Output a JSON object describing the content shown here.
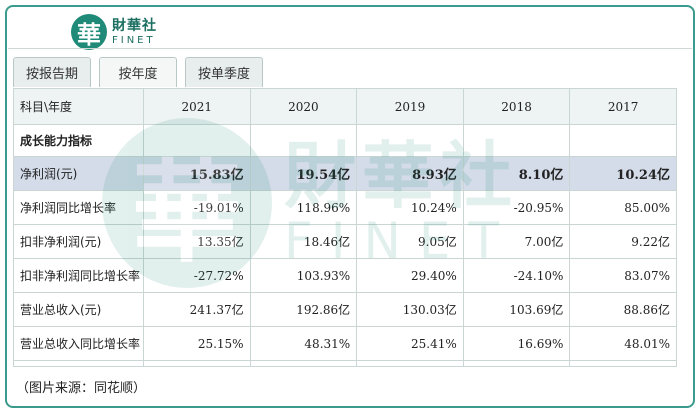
{
  "logo": {
    "mark": "華",
    "name_cn": "財華社",
    "name_en": "FINET"
  },
  "tabs": [
    {
      "label": "按报告期",
      "active": false
    },
    {
      "label": "按年度",
      "active": true
    },
    {
      "label": "按单季度",
      "active": false
    }
  ],
  "table": {
    "header_label": "科目\\年度",
    "years": [
      "2021",
      "2020",
      "2019",
      "2018",
      "2017"
    ],
    "section_title": "成长能力指标",
    "rows": [
      {
        "label": "净利润(元)",
        "values": [
          "15.83亿",
          "19.54亿",
          "8.93亿",
          "8.10亿",
          "10.24亿"
        ],
        "highlight": true
      },
      {
        "label": "净利润同比增长率",
        "values": [
          "-19.01%",
          "118.96%",
          "10.24%",
          "-20.95%",
          "85.00%"
        ]
      },
      {
        "label": "扣非净利润(元)",
        "values": [
          "13.35亿",
          "18.46亿",
          "9.05亿",
          "7.00亿",
          "9.22亿"
        ]
      },
      {
        "label": "扣非净利润同比增长率",
        "values": [
          "-27.72%",
          "103.93%",
          "29.40%",
          "-24.10%",
          "83.07%"
        ]
      },
      {
        "label": "营业总收入(元)",
        "values": [
          "241.37亿",
          "192.86亿",
          "130.03亿",
          "103.69亿",
          "88.86亿"
        ]
      },
      {
        "label": "营业总收入同比增长率",
        "values": [
          "25.15%",
          "48.31%",
          "25.41%",
          "16.69%",
          "48.01%"
        ]
      }
    ]
  },
  "caption": "（图片来源：同花顺）",
  "colors": {
    "brand": "#1f8a78",
    "frame": "#3a9a8c",
    "highlight_row": "#d4dce9"
  }
}
